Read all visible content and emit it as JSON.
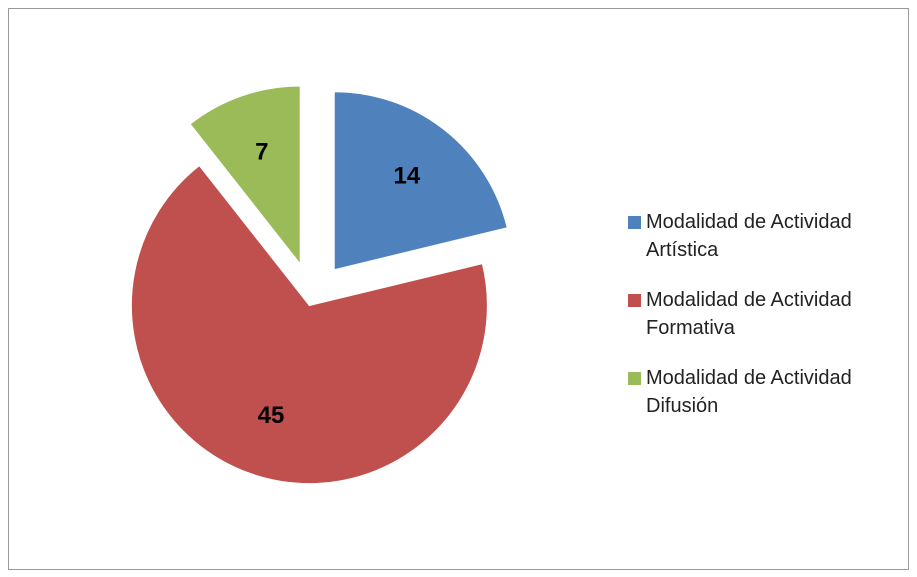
{
  "chart_data": {
    "type": "pie",
    "categories": [
      "Modalidad de Actividad Artística",
      "Modalidad de Actividad Formativa",
      "Modalidad de Actividad Difusión"
    ],
    "values": [
      14,
      45,
      7
    ],
    "colors": [
      "#4f81bd",
      "#c0504d",
      "#9bbb59"
    ],
    "legend": "right"
  }
}
